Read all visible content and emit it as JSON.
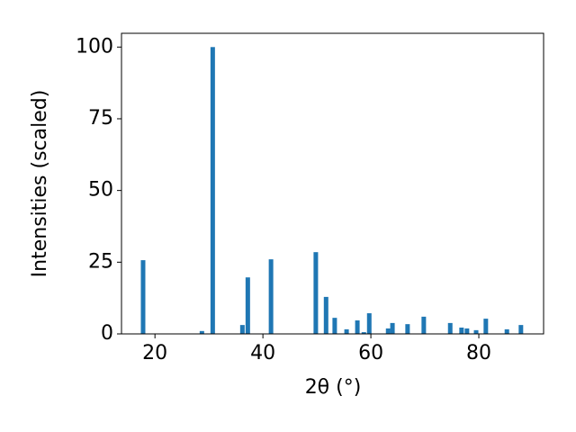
{
  "chart_data": {
    "type": "bar",
    "x": [
      17.8,
      28.7,
      30.7,
      36.2,
      37.2,
      41.5,
      49.8,
      51.7,
      53.3,
      55.5,
      57.5,
      58.7,
      59.7,
      63.2,
      64.0,
      66.8,
      69.8,
      74.7,
      76.8,
      77.8,
      79.5,
      81.3,
      85.2,
      87.8
    ],
    "values": [
      25.7,
      1.0,
      100,
      3.1,
      19.7,
      26.0,
      28.5,
      12.9,
      5.6,
      1.6,
      4.7,
      0.6,
      7.2,
      1.9,
      3.8,
      3.4,
      6.0,
      3.8,
      2.2,
      1.9,
      1.3,
      5.3,
      1.6,
      3.1
    ],
    "color": "#1f77b4",
    "xlabel": "2θ (°)",
    "ylabel": "Intensities (scaled)",
    "xlim": [
      13.8,
      92.0
    ],
    "xticks": [
      20,
      40,
      60,
      80
    ],
    "ylim": [
      0,
      104.8
    ],
    "yticks": [
      0,
      25,
      50,
      75,
      100
    ],
    "grid": false
  }
}
